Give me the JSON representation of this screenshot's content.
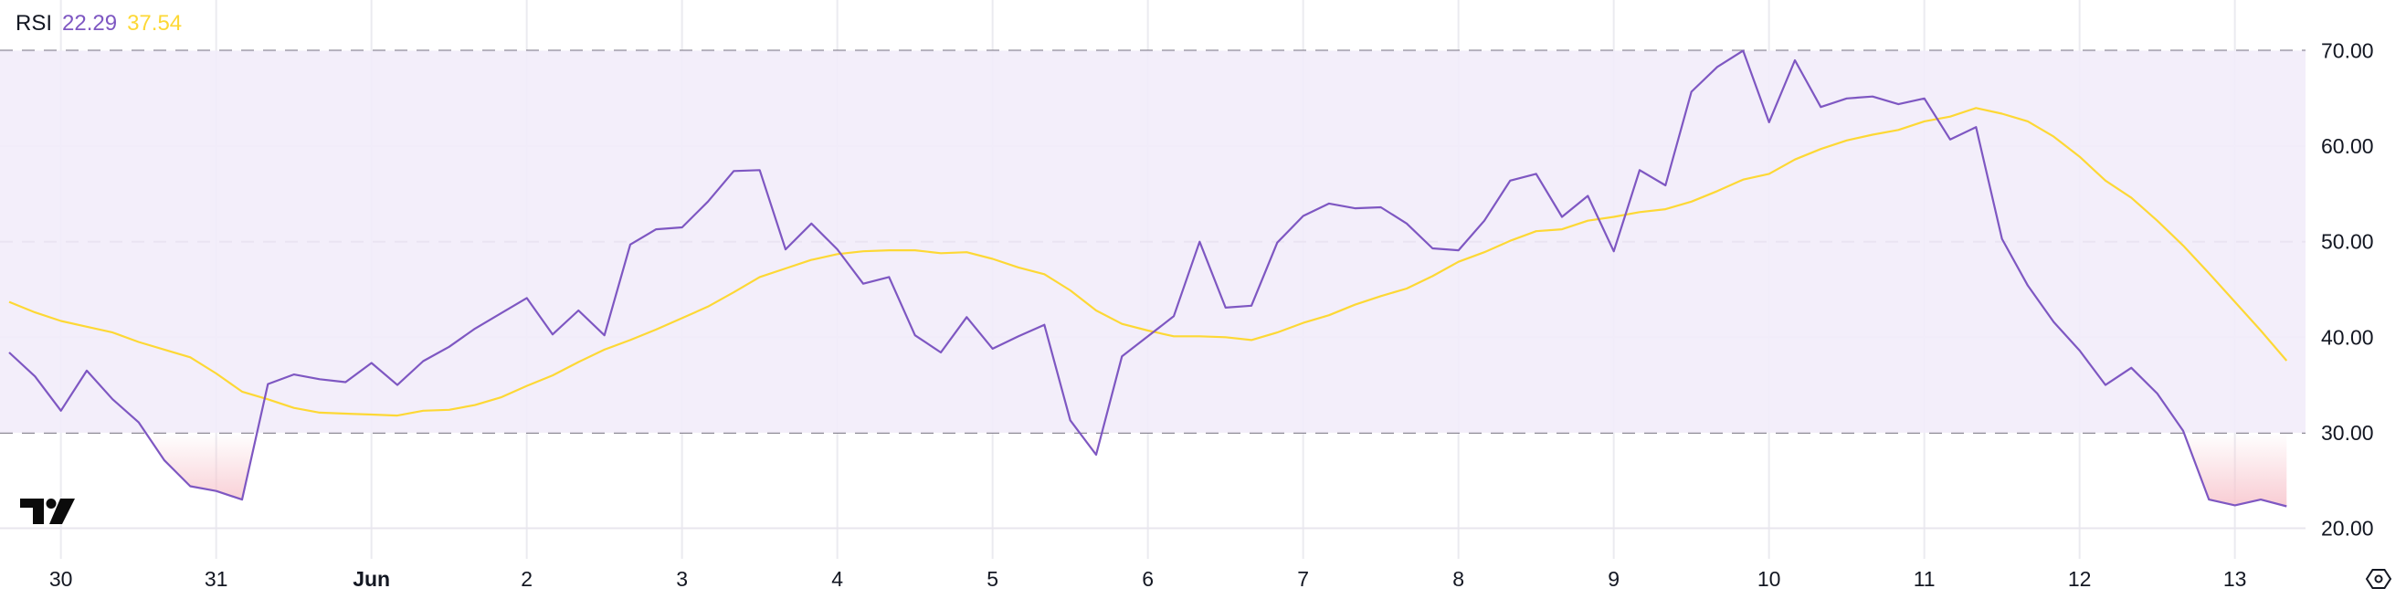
{
  "legend": {
    "indicator": "RSI",
    "rsi_value": "22.29",
    "ma_value": "37.54"
  },
  "colors": {
    "rsi": "#7e57c2",
    "ma": "#fdd835",
    "band_fill": "#f2ecf9",
    "oversold_fill": "#f7c4cc"
  },
  "icons": {
    "logo": "tradingview-logo",
    "settings": "hexagon-eye-icon"
  },
  "chart_data": {
    "type": "line",
    "title": "",
    "ylim": [
      20,
      70
    ],
    "y_ticks": [
      "70.00",
      "60.00",
      "50.00",
      "40.00",
      "30.00",
      "20.00"
    ],
    "band": {
      "upper": 70,
      "middle": 50,
      "lower": 30
    },
    "x_ticks": [
      "30",
      "31",
      "Jun",
      "2",
      "3",
      "4",
      "5",
      "6",
      "7",
      "8",
      "9",
      "10",
      "11",
      "12",
      "13"
    ],
    "x_interval": "4h",
    "grid": true,
    "series": [
      {
        "key": "rsi",
        "values": [
          38.4,
          35.9,
          32.3,
          36.5,
          33.5,
          31.1,
          27.1,
          24.4,
          23.9,
          23.0,
          35.1,
          36.1,
          35.6,
          35.3,
          37.3,
          35.0,
          37.5,
          39.0,
          40.9,
          42.5,
          44.1,
          40.3,
          42.8,
          40.2,
          49.7,
          51.3,
          51.5,
          54.2,
          57.4,
          57.5,
          49.2,
          51.9,
          49.2,
          45.6,
          46.3,
          40.2,
          38.4,
          42.1,
          38.8,
          40.1,
          41.3,
          31.3,
          27.7,
          38.0,
          40.1,
          42.2,
          50.0,
          43.1,
          43.3,
          49.9,
          52.7,
          54.0,
          53.5,
          53.6,
          51.9,
          49.3,
          49.1,
          52.2,
          56.4,
          57.1,
          52.6,
          54.8,
          49.0,
          57.5,
          55.9,
          65.7,
          68.3,
          70.0,
          62.5,
          69.0,
          64.1,
          65.0,
          65.2,
          64.4,
          65.0,
          60.7,
          62.0,
          50.3,
          45.4,
          41.6,
          38.6,
          35.0,
          36.8,
          34.1,
          30.2,
          23.0,
          22.4,
          23.0,
          22.29
        ]
      },
      {
        "key": "ma",
        "values": [
          43.7,
          42.6,
          41.7,
          41.1,
          40.5,
          39.5,
          38.7,
          37.9,
          36.2,
          34.3,
          33.5,
          32.6,
          32.1,
          32.0,
          31.9,
          31.8,
          32.3,
          32.4,
          32.9,
          33.7,
          34.9,
          36.0,
          37.4,
          38.7,
          39.7,
          40.8,
          42.0,
          43.2,
          44.7,
          46.3,
          47.2,
          48.1,
          48.7,
          49.0,
          49.1,
          49.1,
          48.8,
          48.9,
          48.2,
          47.3,
          46.6,
          44.9,
          42.8,
          41.4,
          40.7,
          40.1,
          40.1,
          40.0,
          39.7,
          40.5,
          41.5,
          42.3,
          43.4,
          44.3,
          45.1,
          46.4,
          47.9,
          48.9,
          50.1,
          51.1,
          51.3,
          52.2,
          52.6,
          53.1,
          53.4,
          54.2,
          55.3,
          56.5,
          57.1,
          58.6,
          59.7,
          60.6,
          61.2,
          61.7,
          62.6,
          63.1,
          64.0,
          63.4,
          62.6,
          61.0,
          58.9,
          56.4,
          54.6,
          52.2,
          49.6,
          46.7,
          43.7,
          40.7,
          37.54
        ]
      }
    ]
  }
}
